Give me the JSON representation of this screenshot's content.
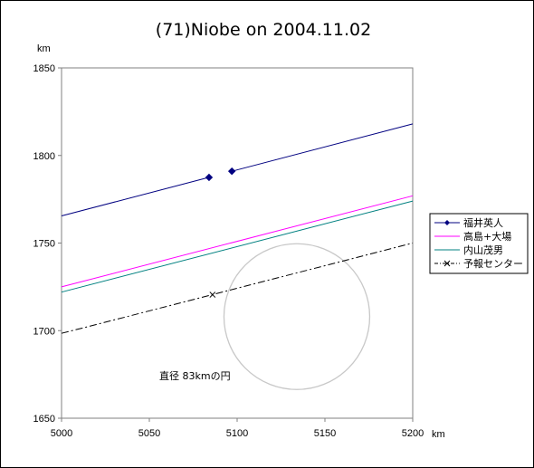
{
  "chart_data": {
    "type": "line",
    "title": "(71)Niobe on 2004.11.02",
    "xlabel": "km",
    "ylabel": "km",
    "xlim": [
      5000,
      5200
    ],
    "ylim": [
      1650,
      1850
    ],
    "xticks": [
      "5000",
      "5050",
      "5100",
      "5150",
      "5200"
    ],
    "yticks": [
      "1650",
      "1700",
      "1750",
      "1800",
      "1850"
    ],
    "grid": false,
    "legend_position": "right",
    "series": [
      {
        "name": "福井英人",
        "color": "#000080",
        "style": "solid-with-markers",
        "segments": [
          [
            [
              5000,
              1765.5
            ],
            [
              5084,
              1787.5
            ]
          ],
          [
            [
              5097,
              1791
            ],
            [
              5200,
              1818
            ]
          ]
        ],
        "markers": [
          [
            5084,
            1787.5
          ],
          [
            5097,
            1791
          ]
        ]
      },
      {
        "name": "高島+大場",
        "color": "#ff00ff",
        "style": "solid",
        "segments": [
          [
            [
              5000,
              1725
            ],
            [
              5200,
              1777
            ]
          ]
        ]
      },
      {
        "name": "内山茂男",
        "color": "#008080",
        "style": "solid",
        "segments": [
          [
            [
              5000,
              1722
            ],
            [
              5200,
              1774
            ]
          ]
        ]
      },
      {
        "name": "予報センター",
        "color": "#000000",
        "style": "dash-dot",
        "segments": [
          [
            [
              5000,
              1698.5
            ],
            [
              5018,
              1703
            ],
            [
              5200,
              1750
            ]
          ]
        ],
        "markers": [
          [
            5086,
            1720.5
          ]
        ]
      }
    ],
    "circle": {
      "center": [
        5134,
        1708
      ],
      "diameter_km": 83,
      "color": "#c8c8c8"
    },
    "annotation": "直径 83kmの円"
  }
}
